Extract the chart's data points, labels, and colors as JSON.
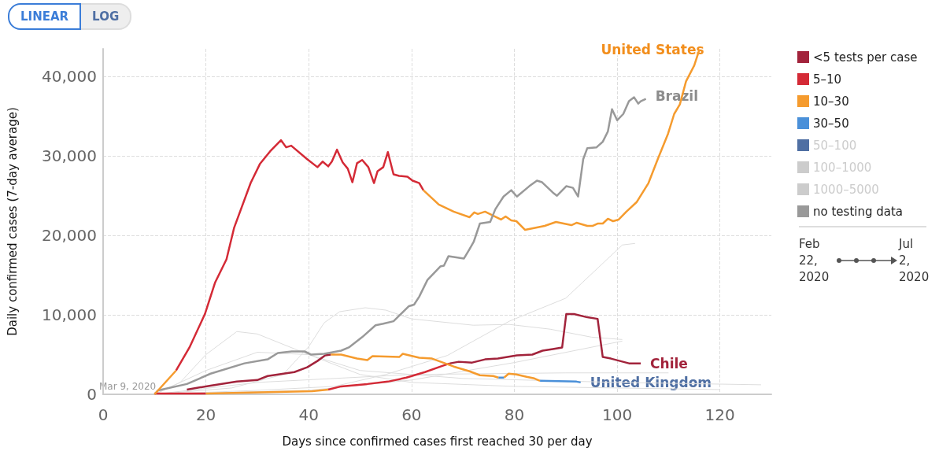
{
  "chart_data": {
    "type": "line",
    "xlabel": "Days since confirmed cases first reached 30 per day",
    "ylabel": "Daily confirmed cases (7-day average)",
    "xlim": [
      0,
      130
    ],
    "xticks": [
      0,
      20,
      40,
      60,
      80,
      100,
      120
    ],
    "ylim": [
      0,
      43500
    ],
    "yticks": [
      0,
      {
        "value": 10000,
        "label": "10,000"
      },
      {
        "value": 20000,
        "label": "20,000"
      },
      {
        "value": 30000,
        "label": "30,000"
      },
      {
        "value": 40000,
        "label": "40,000"
      }
    ],
    "grid": true,
    "legend": "right",
    "marker": "none",
    "line_style": "solid",
    "annotations": [
      "LINEAR",
      "LOG",
      "Feb 22, 2020",
      "Jul 2, 2020",
      "Mar 9, 2020",
      {
        "text": "United States",
        "x": 116,
        "y": 43400
      },
      {
        "text": "Brazil",
        "x": 105.6,
        "y": 37200
      },
      {
        "text": "Chile",
        "x": 104.6,
        "y": 3900
      },
      {
        "text": "United Kingdom",
        "x": 92.9,
        "y": 1500
      }
    ],
    "series": [
      {
        "color": "#dddddd",
        "x": [
          10,
          25,
          35,
          40,
          43,
          46,
          51,
          55,
          60,
          72,
          79,
          87,
          95,
          101
        ],
        "values": [
          0,
          800,
          2500,
          6000,
          9000,
          10400,
          10900,
          10600,
          9500,
          8700,
          8800,
          8200,
          7200,
          6900
        ]
      },
      {
        "color": "#dddddd",
        "x": [
          10,
          30,
          45,
          55,
          67,
          79,
          90,
          101,
          103.5
        ],
        "values": [
          0,
          500,
          1000,
          2500,
          4900,
          9200,
          12100,
          18800,
          19000
        ]
      },
      {
        "color": "#dddddd",
        "x": [
          10,
          15,
          20,
          26,
          30,
          40,
          50,
          60,
          80,
          100,
          120
        ],
        "values": [
          0,
          1500,
          5000,
          7900,
          7600,
          5000,
          2500,
          1500,
          1000,
          800,
          600
        ]
      },
      {
        "color": "#dddddd",
        "x": [
          10,
          20,
          30,
          40,
          50,
          70,
          100,
          128
        ],
        "values": [
          0,
          3000,
          5300,
          5000,
          3000,
          2000,
          1500,
          1200
        ]
      },
      {
        "color": "#dddddd",
        "x": [
          10,
          40,
          60,
          80,
          101
        ],
        "values": [
          0,
          500,
          1800,
          4000,
          6700
        ]
      },
      {
        "color": "#dddddd",
        "x": [
          10,
          30,
          60,
          90,
          110
        ],
        "values": [
          0,
          1500,
          2500,
          2700,
          2700
        ]
      },
      {
        "name": "<5 tests per case",
        "color": "#a2233b",
        "x": [
          16.3,
          20.9,
          26,
          30,
          32,
          35.1,
          37.2,
          39.7,
          41.7,
          43.2,
          44.3
        ],
        "values": [
          600,
          1100,
          1600,
          1800,
          2300,
          2600,
          2800,
          3400,
          4200,
          4900,
          5000
        ]
      },
      {
        "name": "5–10",
        "color": "#d42a36",
        "x": [
          14.2,
          16.8,
          19.8,
          21.8,
          24,
          25.5,
          28.7,
          30.5,
          32.5,
          34.6,
          35.6,
          36.6,
          39.7,
          41.7,
          42.7,
          43.8,
          44.5,
          45.5,
          46.6,
          47.6,
          48.5,
          49.4,
          50.4,
          51.6,
          52.7,
          53.4,
          54.5,
          55.4,
          56.5,
          57.6,
          59.2,
          60.2,
          61.5,
          62.3
        ],
        "values": [
          3000,
          5900,
          10100,
          14100,
          17000,
          21000,
          26600,
          29000,
          30600,
          32000,
          31100,
          31300,
          29600,
          28600,
          29300,
          28700,
          29300,
          30800,
          29200,
          28400,
          26700,
          29100,
          29500,
          28600,
          26600,
          28100,
          28600,
          30500,
          27700,
          27500,
          27400,
          26900,
          26600,
          25700
        ]
      },
      {
        "name": "10–30",
        "color": "#f59b2e",
        "x": [
          62.3,
          65.3,
          68.2,
          71.3,
          72.2,
          72.9,
          74.3,
          77.4,
          78.3,
          79.4,
          80.4,
          82.1,
          84.4,
          85.9,
          88.1,
          91.1,
          92.1,
          94.2,
          95.2,
          96.2,
          97.2,
          98.2,
          99.2,
          100.3,
          101.8,
          103.8,
          106.1,
          107.9,
          109.9,
          111.1,
          112.2,
          113.4,
          115,
          116
        ],
        "values": [
          25700,
          23900,
          23000,
          22300,
          22900,
          22700,
          23000,
          22000,
          22400,
          21900,
          21800,
          20700,
          21000,
          21200,
          21700,
          21300,
          21600,
          21200,
          21200,
          21500,
          21500,
          22100,
          21800,
          22000,
          23000,
          24200,
          26600,
          29600,
          32800,
          35300,
          36500,
          39400,
          41400,
          43400
        ]
      },
      {
        "name": "30–50",
        "color": "#4a90d9",
        "x": [
          76.9,
          78
        ],
        "values": [
          2100,
          2100
        ]
      },
      {
        "name": "50–100",
        "color": "#4f6fa3"
      },
      {
        "name": "100–1000",
        "color": "#cccccc"
      },
      {
        "name": "1000–5000",
        "color": "#cccccc"
      },
      {
        "name": "no testing data",
        "color": "#999999",
        "x": [
          10,
          10.7,
          16.3,
          20.9,
          27.5,
          32,
          34,
          36.7,
          39.2,
          40.5,
          43,
          46.3,
          47.8,
          50.4,
          53,
          54.5,
          56.5,
          59.5,
          60.5,
          61.5,
          63.1,
          65.6,
          66.3,
          67.2,
          70.2,
          71.3,
          72.1,
          73.3,
          75.3,
          76.3,
          77.9,
          79.4,
          80.5,
          82.9,
          84.4,
          85.4,
          87.5,
          88.3,
          90.1,
          91.4,
          92.4,
          93.4,
          94.2,
          96,
          97.2,
          98.2,
          99,
          100,
          101.2,
          102.3,
          103.3,
          104.1,
          104.6,
          105.6
        ],
        "values": [
          0,
          500,
          1300,
          2600,
          3900,
          4400,
          5200,
          5400,
          5400,
          5000,
          5100,
          5500,
          5900,
          7200,
          8700,
          8900,
          9200,
          11100,
          11300,
          12300,
          14400,
          16100,
          16200,
          17400,
          17100,
          18300,
          19200,
          21500,
          21700,
          23300,
          24900,
          25700,
          24900,
          26200,
          26900,
          26700,
          25400,
          25000,
          26200,
          26000,
          24900,
          29600,
          31000,
          31100,
          31800,
          33100,
          35900,
          34500,
          35300,
          36900,
          37400,
          36600,
          36900,
          37200
        ]
      },
      {
        "color": "#a2233b",
        "x": [
          67.5,
          69.2,
          71.8,
          74.3,
          76.8,
          80.5,
          83.5,
          85.5,
          87.5,
          89.3,
          90.1,
          91.6,
          94.2,
          96.2,
          97.2,
          98.8,
          102.3,
          104.6
        ],
        "values": [
          3900,
          4100,
          4000,
          4400,
          4500,
          4900,
          5000,
          5500,
          5700,
          5900,
          10100,
          10100,
          9700,
          9500,
          4700,
          4500,
          3900,
          3900
        ]
      },
      {
        "color": "#d42a36",
        "x": [
          10,
          20
        ],
        "values": [
          100,
          100
        ]
      },
      {
        "color": "#d42a36",
        "x": [
          43.8,
          46.3,
          51.4,
          55.4,
          59,
          62.6,
          66.1,
          67.5
        ],
        "values": [
          600,
          1000,
          1300,
          1600,
          2100,
          2800,
          3600,
          3900
        ]
      },
      {
        "color": "#f59b2e",
        "x": [
          10,
          14.2
        ],
        "values": [
          0,
          3000
        ]
      },
      {
        "color": "#f59b2e",
        "x": [
          20,
          40.7,
          43.8
        ],
        "values": [
          100,
          400,
          600
        ]
      },
      {
        "color": "#f59b2e",
        "x": [
          44.3,
          46.3,
          49.4,
          51.4,
          52.4,
          57.6,
          58.3,
          61.5,
          64,
          68.2,
          71.3,
          73.3,
          75.9,
          76.9
        ],
        "values": [
          5000,
          5000,
          4500,
          4300,
          4800,
          4700,
          5100,
          4600,
          4500,
          3500,
          2900,
          2400,
          2300,
          2100
        ]
      },
      {
        "color": "#f59b2e",
        "x": [
          78,
          78.9,
          80.4,
          82.4,
          83.9,
          85
        ],
        "values": [
          2100,
          2600,
          2500,
          2200,
          2000,
          1700
        ]
      },
      {
        "color": "#4a90d9",
        "x": [
          85,
          92.1,
          92.9
        ],
        "values": [
          1700,
          1600,
          1500
        ]
      }
    ]
  }
}
